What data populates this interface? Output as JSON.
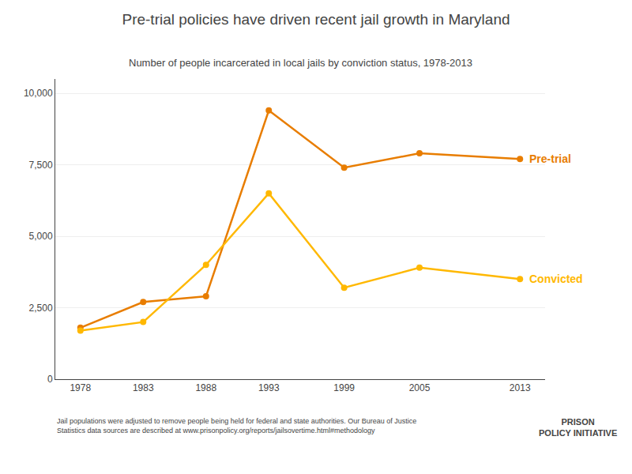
{
  "chart_data": {
    "type": "line",
    "title": "Pre-trial policies have driven recent jail growth in Maryland",
    "subtitle": "Number of people incarcerated in local jails by conviction status, 1978-2013",
    "x": [
      1978,
      1983,
      1988,
      1993,
      1999,
      2005,
      2013
    ],
    "series": [
      {
        "name": "Pre-trial",
        "color": "#E87D00",
        "marker": "circle",
        "values": [
          1800,
          2700,
          2900,
          9400,
          7400,
          7900,
          7700
        ]
      },
      {
        "name": "Convicted",
        "color": "#FFB800",
        "marker": "circle",
        "values": [
          1700,
          2000,
          4000,
          6500,
          3200,
          3900,
          3500
        ]
      }
    ],
    "xlim": [
      1976,
      2015
    ],
    "xticks": [
      1978,
      1983,
      1988,
      1993,
      1999,
      2005,
      2013
    ],
    "ylim": [
      0,
      10500
    ],
    "yticks": [
      0,
      {
        "value": 2500,
        "label": "2,500"
      },
      {
        "value": 5000,
        "label": "5,000"
      },
      {
        "value": 7500,
        "label": "7,500"
      },
      {
        "value": 10000,
        "label": "10,000"
      }
    ],
    "grid": true,
    "annotations": [
      "Jail populations were adjusted to remove people being held for federal and state authorities. Our Bureau of Justice\nStatistics data sources are described at www.prisonpolicy.org/reports/jailsovertime.html#methodology",
      "PRISON\nPOLICY INITIATIVE"
    ]
  }
}
